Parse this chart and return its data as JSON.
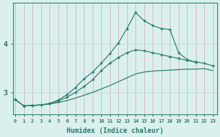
{
  "x": [
    0,
    1,
    2,
    3,
    4,
    5,
    6,
    7,
    8,
    9,
    10,
    11,
    12,
    13,
    14,
    15,
    16,
    17,
    18,
    19,
    20,
    21,
    22,
    23
  ],
  "line1_y": [
    2.85,
    2.72,
    2.73,
    2.74,
    2.76,
    2.79,
    2.83,
    2.88,
    2.94,
    3.0,
    3.07,
    3.14,
    3.22,
    3.3,
    3.38,
    3.42,
    3.44,
    3.45,
    3.46,
    3.47,
    3.48,
    3.48,
    3.49,
    3.45
  ],
  "line2_x": [
    0,
    1,
    2,
    3,
    4,
    5,
    6,
    7,
    8,
    9,
    10,
    11,
    12,
    13,
    14,
    15,
    16,
    17,
    18,
    19,
    20,
    21,
    22,
    23
  ],
  "line2_y": [
    2.85,
    2.72,
    2.73,
    2.74,
    2.77,
    2.82,
    2.9,
    3.0,
    3.12,
    3.26,
    3.45,
    3.6,
    3.72,
    3.82,
    3.88,
    3.86,
    3.82,
    3.78,
    3.74,
    3.7,
    3.66,
    3.63,
    3.6,
    3.55
  ],
  "line3_x": [
    0,
    1,
    2,
    3,
    4,
    5,
    6,
    7,
    8,
    9,
    10,
    11,
    12,
    13,
    14,
    15,
    16,
    17,
    18,
    19,
    20,
    21
  ],
  "line3_y": [
    2.85,
    2.72,
    2.73,
    2.74,
    2.77,
    2.84,
    2.95,
    3.1,
    3.28,
    3.42,
    3.6,
    3.8,
    4.02,
    4.32,
    4.65,
    4.48,
    4.38,
    4.32,
    4.3,
    3.82,
    3.68,
    3.62
  ],
  "line_color": "#2a7a6c",
  "bg_color": "#daf0ee",
  "grid_color": "#bcdcda",
  "axis_color": "#2a7a6c",
  "xlabel": "Humidex (Indice chaleur)",
  "yticks": [
    3,
    4
  ],
  "ylim": [
    2.55,
    4.85
  ],
  "xlim": [
    -0.3,
    23.5
  ],
  "xtick_labels": [
    "0",
    "1",
    "2",
    "3",
    "4",
    "5",
    "6",
    "7",
    "8",
    "9",
    "10",
    "11",
    "12",
    "13",
    "14",
    "15",
    "16",
    "17",
    "18",
    "19",
    "20",
    "21",
    "22",
    "23"
  ]
}
